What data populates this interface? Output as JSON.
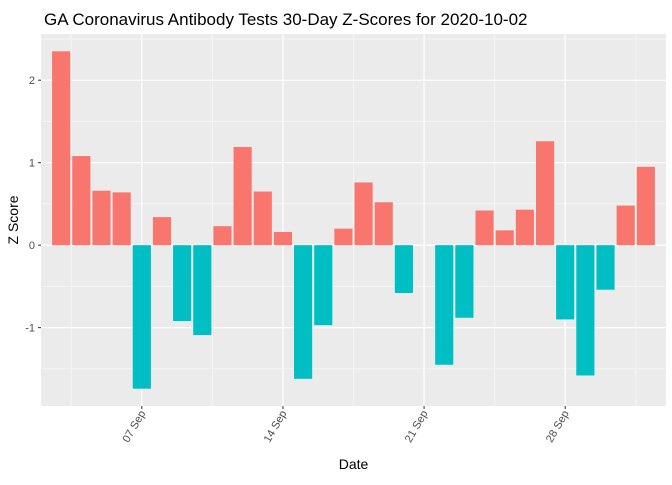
{
  "chart_data": {
    "type": "bar",
    "title": "GA Coronavirus Antibody Tests 30-Day Z-Scores for 2020-10-02",
    "xlabel": "Date",
    "ylabel": "Z Score",
    "x": [
      "2020-09-03",
      "2020-09-04",
      "2020-09-05",
      "2020-09-06",
      "2020-09-07",
      "2020-09-08",
      "2020-09-09",
      "2020-09-10",
      "2020-09-11",
      "2020-09-12",
      "2020-09-13",
      "2020-09-14",
      "2020-09-15",
      "2020-09-16",
      "2020-09-17",
      "2020-09-18",
      "2020-09-19",
      "2020-09-20",
      "2020-09-21",
      "2020-09-22",
      "2020-09-23",
      "2020-09-24",
      "2020-09-25",
      "2020-09-26",
      "2020-09-27",
      "2020-09-28",
      "2020-09-29",
      "2020-09-30",
      "2020-10-01",
      "2020-10-02"
    ],
    "values": [
      2.35,
      1.08,
      0.66,
      0.64,
      -1.74,
      0.34,
      -0.92,
      -1.09,
      0.23,
      1.19,
      0.65,
      0.16,
      -1.62,
      -0.97,
      0.2,
      0.76,
      0.52,
      -0.58,
      0.0,
      -1.45,
      -0.88,
      0.42,
      0.18,
      0.43,
      1.26,
      -0.9,
      -1.58,
      -0.54,
      0.48,
      0.95
    ],
    "xlim": [
      "2020-09-02",
      "2020-10-03"
    ],
    "ylim": [
      -1.95,
      2.56
    ],
    "x_ticks": [
      {
        "date": "2020-09-07",
        "label": "07 Sep"
      },
      {
        "date": "2020-09-14",
        "label": "14 Sep"
      },
      {
        "date": "2020-09-21",
        "label": "21 Sep"
      },
      {
        "date": "2020-09-28",
        "label": "28 Sep"
      }
    ],
    "y_ticks": [
      {
        "value": -1,
        "label": "-1"
      },
      {
        "value": 0,
        "label": "0"
      },
      {
        "value": 1,
        "label": "1"
      },
      {
        "value": 2,
        "label": "2"
      }
    ],
    "colors": {
      "positive": "#F8766D",
      "negative": "#00BFC4",
      "panel": "#EBEBEB",
      "grid_major": "#FFFFFF",
      "grid_minor": "#F5F5F5",
      "tick_text": "#4D4D4D",
      "tick_mark": "#333333",
      "text": "#000000"
    },
    "grid": true,
    "legend": "none"
  }
}
